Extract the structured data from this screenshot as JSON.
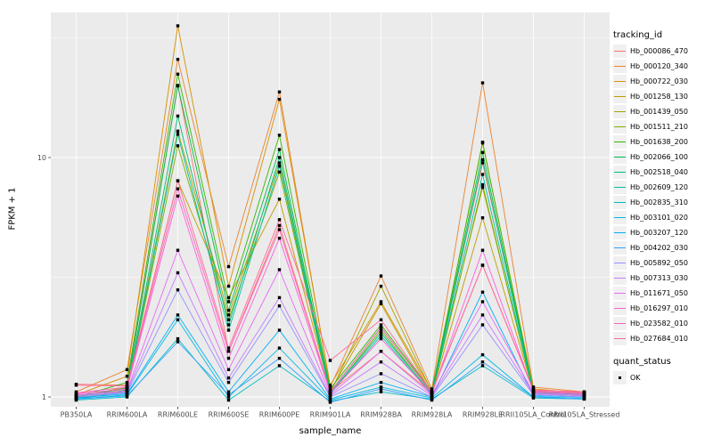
{
  "figure": {
    "panel_background": "#EBEBEB",
    "grid_color": "#FFFFFF",
    "tick_text_color": "#4D4D4D",
    "point_color": "#000000"
  },
  "chart_data": {
    "type": "line",
    "title": "",
    "xlabel": "sample_name",
    "ylabel": "FPKM + 1",
    "y_scale": "log10",
    "ylim": [
      0.88,
      42
    ],
    "y_ticks": [
      1,
      10
    ],
    "y_minor_ticks": [
      3.162,
      31.62
    ],
    "grid": true,
    "legend_position": "right",
    "legend_title": "tracking_id",
    "point_shape": "square",
    "categories": [
      "PB350LA",
      "RRIM600LA",
      "RRIM600LE",
      "RRIM600SE",
      "RRIM600PE",
      "RRIM901LA",
      "RRIM928BA",
      "RRIM928LA",
      "RRIM928LE",
      "RRII105LA_Control",
      "RRII105LA_Stressed"
    ],
    "series": [
      {
        "name": "Hb_000086_470",
        "color": "#F8766D",
        "values": [
          1.13,
          1.12,
          20.0,
          1.55,
          5.2,
          1.05,
          1.55,
          1.04,
          9.5,
          1.07,
          1.02
        ]
      },
      {
        "name": "Hb_000120_340",
        "color": "#EA8331",
        "values": [
          1.05,
          1.3,
          25.7,
          3.5,
          18.8,
          1.1,
          3.2,
          1.08,
          20.5,
          1.1,
          1.05
        ]
      },
      {
        "name": "Hb_000722_030",
        "color": "#D89000",
        "values": [
          1.02,
          1.22,
          35.5,
          2.9,
          17.5,
          1.12,
          2.5,
          1.06,
          11.5,
          1.08,
          1.04
        ]
      },
      {
        "name": "Hb_001258_130",
        "color": "#C09B00",
        "values": [
          1.0,
          1.1,
          8.0,
          2.6,
          6.7,
          1.06,
          2.45,
          1.03,
          5.6,
          1.05,
          1.03
        ]
      },
      {
        "name": "Hb_001439_050",
        "color": "#A3A500",
        "values": [
          1.01,
          1.08,
          12.9,
          2.2,
          9.5,
          1.04,
          2.9,
          1.05,
          7.5,
          1.04,
          1.02
        ]
      },
      {
        "name": "Hb_001511_210",
        "color": "#7CAE00",
        "values": [
          0.99,
          1.06,
          11.2,
          2.1,
          8.7,
          1.03,
          1.9,
          1.02,
          7.7,
          1.03,
          1.01
        ]
      },
      {
        "name": "Hb_001638_200",
        "color": "#39B600",
        "values": [
          1.0,
          1.15,
          22.3,
          2.5,
          12.4,
          1.08,
          2.0,
          1.05,
          11.6,
          1.06,
          1.03
        ]
      },
      {
        "name": "Hb_002066_100",
        "color": "#00BB4E",
        "values": [
          1.0,
          1.09,
          19.9,
          2.3,
          10.8,
          1.05,
          1.95,
          1.04,
          10.5,
          1.05,
          1.02
        ]
      },
      {
        "name": "Hb_002518_040",
        "color": "#00BF7D",
        "values": [
          0.99,
          1.07,
          14.9,
          2.0,
          10.0,
          1.04,
          1.85,
          1.03,
          9.8,
          1.04,
          1.02
        ]
      },
      {
        "name": "Hb_002609_120",
        "color": "#00C1A3",
        "values": [
          0.98,
          1.05,
          12.5,
          1.9,
          9.2,
          1.03,
          1.8,
          1.02,
          8.5,
          1.03,
          1.01
        ]
      },
      {
        "name": "Hb_002835_310",
        "color": "#00BFC4",
        "values": [
          0.97,
          1.0,
          1.75,
          0.97,
          1.35,
          0.96,
          1.05,
          0.98,
          1.35,
          0.99,
          0.98
        ]
      },
      {
        "name": "Hb_003101_020",
        "color": "#00BAE0",
        "values": [
          0.98,
          1.02,
          2.1,
          1.0,
          1.6,
          0.97,
          1.1,
          0.99,
          1.5,
          1.0,
          0.99
        ]
      },
      {
        "name": "Hb_003207_120",
        "color": "#00B0F6",
        "values": [
          0.99,
          1.03,
          2.2,
          1.05,
          1.9,
          0.98,
          1.15,
          1.0,
          2.74,
          1.01,
          1.0
        ]
      },
      {
        "name": "Hb_004202_030",
        "color": "#35A2FF",
        "values": [
          0.98,
          1.01,
          1.7,
          1.02,
          1.45,
          0.95,
          1.08,
          0.97,
          1.4,
          1.0,
          0.98
        ]
      },
      {
        "name": "Hb_005892_050",
        "color": "#9590FF",
        "values": [
          1.0,
          1.04,
          2.8,
          1.15,
          2.4,
          1.0,
          1.25,
          1.0,
          2.0,
          1.02,
          1.0
        ]
      },
      {
        "name": "Hb_007313_030",
        "color": "#C77CFF",
        "values": [
          1.01,
          1.05,
          3.3,
          1.2,
          2.6,
          1.01,
          1.4,
          1.01,
          2.2,
          1.03,
          1.01
        ]
      },
      {
        "name": "Hb_011671_050",
        "color": "#E76BF3",
        "values": [
          1.02,
          1.06,
          4.1,
          1.3,
          3.4,
          1.02,
          1.55,
          1.02,
          2.5,
          1.04,
          1.02
        ]
      },
      {
        "name": "Hb_016297_010",
        "color": "#FA62DB",
        "values": [
          1.03,
          1.08,
          6.9,
          1.45,
          4.6,
          1.04,
          1.75,
          1.03,
          4.1,
          1.05,
          1.03
        ]
      },
      {
        "name": "Hb_023582_010",
        "color": "#FF62BC",
        "values": [
          1.04,
          1.1,
          7.4,
          1.55,
          5.0,
          1.05,
          1.95,
          1.04,
          3.55,
          1.06,
          1.04
        ]
      },
      {
        "name": "Hb_027684_010",
        "color": "#FF6A98",
        "values": [
          1.12,
          1.11,
          8.0,
          1.6,
          5.5,
          1.42,
          2.1,
          1.05,
          3.55,
          1.07,
          1.05
        ]
      }
    ],
    "quant_status": {
      "title": "quant_status",
      "items": [
        {
          "label": "OK",
          "shape": "square",
          "color": "#000000"
        }
      ]
    }
  }
}
